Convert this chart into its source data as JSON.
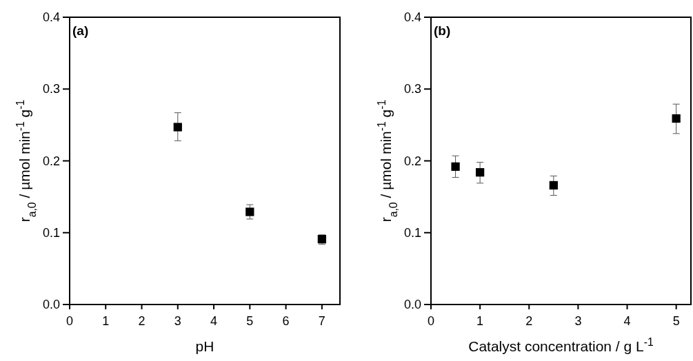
{
  "chart_data": [
    {
      "type": "scatter",
      "title": "(a)",
      "xlabel": "pH",
      "ylabel": "r$_{a,0}$ / µmol min$^{-1}$ g$^{-1}$",
      "x": [
        3,
        5,
        7
      ],
      "values": [
        0.247,
        0.129,
        0.091
      ],
      "errors": [
        [
          0.228,
          0.267
        ],
        [
          0.119,
          0.139
        ],
        [
          0.084,
          0.097
        ]
      ],
      "color": "#000000",
      "marker": "square",
      "xlim": [
        0,
        7.5
      ],
      "xticks": [
        0,
        1,
        2,
        3,
        4,
        5,
        6,
        7
      ],
      "ylim": [
        0,
        0.4
      ],
      "yticks": [
        {
          "value": 0,
          "label": "0.0"
        },
        0.1,
        0.2,
        0.3,
        0.4
      ]
    },
    {
      "type": "scatter",
      "title": "(b)",
      "xlabel": "Catalyst concentration / g L$^{-1}$",
      "ylabel": "r$_{a,0}$ / µmol min$^{-1}$ g$^{-1}$",
      "x": [
        0.5,
        1,
        2.5,
        5
      ],
      "values": [
        0.192,
        0.184,
        0.166,
        0.259
      ],
      "errors": [
        [
          0.177,
          0.207
        ],
        [
          0.169,
          0.198
        ],
        [
          0.152,
          0.179
        ],
        [
          0.238,
          0.279
        ]
      ],
      "color": "#000000",
      "marker": "square",
      "xlim": [
        0,
        5.3
      ],
      "xticks": [
        0,
        1,
        2,
        3,
        4,
        5
      ],
      "ylim": [
        0,
        0.4
      ],
      "yticks": [
        {
          "value": 0,
          "label": "0.0"
        },
        0.1,
        0.2,
        0.3,
        0.4
      ]
    }
  ]
}
